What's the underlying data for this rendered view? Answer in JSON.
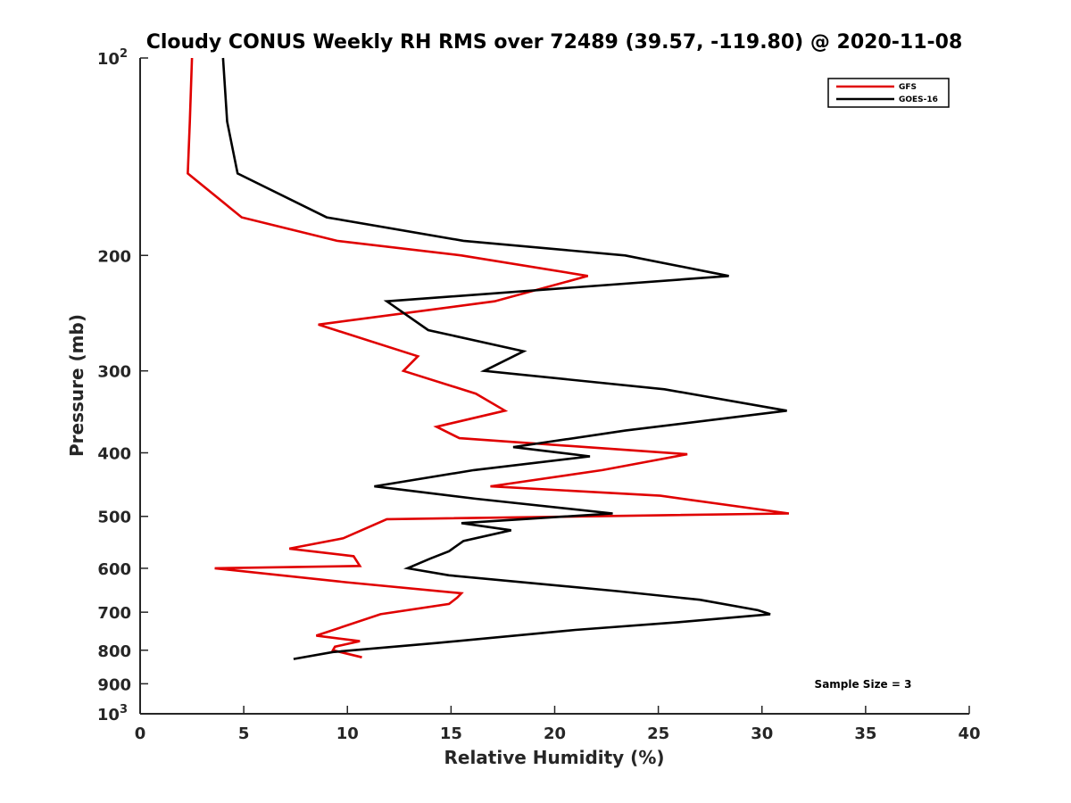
{
  "chart_data": {
    "type": "line",
    "title": "Cloudy CONUS Weekly RH RMS over 72489 (39.57, -119.80) @ 2020-11-08",
    "xlabel": "Relative Humidity (%)",
    "ylabel": "Pressure (mb)",
    "xlim": [
      0,
      40
    ],
    "ylim": [
      100,
      1000
    ],
    "y_scale": "log",
    "y_reversed": true,
    "grid": false,
    "legend_position": "top-right",
    "x_ticks": [
      0,
      5,
      10,
      15,
      20,
      25,
      30,
      35,
      40
    ],
    "x_tick_labels": [
      "0",
      "5",
      "10",
      "15",
      "20",
      "25",
      "30",
      "35",
      "40"
    ],
    "y_ticks": [
      100,
      200,
      300,
      400,
      500,
      600,
      700,
      800,
      900,
      1000
    ],
    "y_tick_labels": [
      {
        "base": "10",
        "sup": "2"
      },
      {
        "base": "200",
        "sup": ""
      },
      {
        "base": "300",
        "sup": ""
      },
      {
        "base": "400",
        "sup": ""
      },
      {
        "base": "500",
        "sup": ""
      },
      {
        "base": "600",
        "sup": ""
      },
      {
        "base": "700",
        "sup": ""
      },
      {
        "base": "800",
        "sup": ""
      },
      {
        "base": "900",
        "sup": ""
      },
      {
        "base": "10",
        "sup": "3"
      }
    ],
    "annotation": "Sample Size = 3",
    "series": [
      {
        "name": "GFS",
        "color": "#e00000",
        "points": [
          [
            2.5,
            100
          ],
          [
            2.4,
            125
          ],
          [
            2.3,
            150
          ],
          [
            4.9,
            175
          ],
          [
            9.5,
            190
          ],
          [
            15.5,
            200
          ],
          [
            21.6,
            215
          ],
          [
            17.1,
            235
          ],
          [
            8.6,
            255
          ],
          [
            13.4,
            285
          ],
          [
            12.7,
            300
          ],
          [
            16.2,
            325
          ],
          [
            17.6,
            345
          ],
          [
            14.3,
            365
          ],
          [
            15.4,
            380
          ],
          [
            26.4,
            402
          ],
          [
            22.3,
            425
          ],
          [
            16.9,
            450
          ],
          [
            25.1,
            465
          ],
          [
            31.3,
            495
          ],
          [
            11.9,
            505
          ],
          [
            9.8,
            540
          ],
          [
            7.2,
            560
          ],
          [
            10.3,
            575
          ],
          [
            10.6,
            595
          ],
          [
            3.6,
            600
          ],
          [
            9.9,
            630
          ],
          [
            15.5,
            655
          ],
          [
            15.3,
            665
          ],
          [
            14.9,
            680
          ],
          [
            11.6,
            705
          ],
          [
            8.5,
            760
          ],
          [
            10.6,
            775
          ],
          [
            9.4,
            790
          ],
          [
            9.3,
            800
          ],
          [
            10.7,
            820
          ]
        ]
      },
      {
        "name": "GOES-16",
        "color": "#000000",
        "points": [
          [
            4.0,
            100
          ],
          [
            4.2,
            125
          ],
          [
            4.7,
            150
          ],
          [
            9.0,
            175
          ],
          [
            15.6,
            190
          ],
          [
            23.4,
            200
          ],
          [
            28.4,
            215
          ],
          [
            11.9,
            235
          ],
          [
            13.9,
            260
          ],
          [
            18.5,
            280
          ],
          [
            16.6,
            300
          ],
          [
            25.3,
            320
          ],
          [
            31.2,
            345
          ],
          [
            23.4,
            370
          ],
          [
            18.0,
            392
          ],
          [
            21.7,
            405
          ],
          [
            16.1,
            425
          ],
          [
            11.3,
            450
          ],
          [
            16.2,
            470
          ],
          [
            22.8,
            495
          ],
          [
            15.5,
            512
          ],
          [
            17.9,
            525
          ],
          [
            15.6,
            545
          ],
          [
            14.9,
            565
          ],
          [
            14.0,
            580
          ],
          [
            12.9,
            600
          ],
          [
            14.9,
            615
          ],
          [
            23.0,
            650
          ],
          [
            27.0,
            670
          ],
          [
            29.8,
            695
          ],
          [
            30.4,
            705
          ],
          [
            26.0,
            725
          ],
          [
            21.0,
            745
          ],
          [
            14.3,
            780
          ],
          [
            9.3,
            805
          ],
          [
            7.4,
            825
          ]
        ]
      }
    ]
  }
}
